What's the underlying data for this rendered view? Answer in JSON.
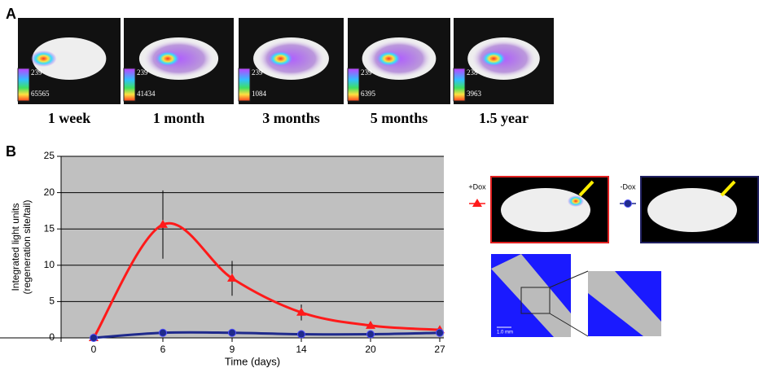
{
  "panel_labels": [
    "A",
    "B"
  ],
  "panel_a": {
    "images": [
      {
        "label": "1 week",
        "scale_min": "239",
        "scale_max": "65565"
      },
      {
        "label": "1 month",
        "scale_min": "239",
        "scale_max": "41434"
      },
      {
        "label": "3  months",
        "scale_min": "239",
        "scale_max": "1084"
      },
      {
        "label": "5 months",
        "scale_min": "239",
        "scale_max": "6395"
      },
      {
        "label": "1.5 year",
        "scale_min": "238",
        "scale_max": "3963"
      }
    ]
  },
  "scale_bar": "1.0 mm",
  "chart_data": {
    "type": "line",
    "x_label": "Time (days)",
    "y_label": [
      "Integrated light units",
      "(regeneration site/tail)"
    ],
    "categories": [
      "0",
      "6",
      "9",
      "14",
      "20",
      "27"
    ],
    "ylim": [
      0,
      25
    ],
    "yticks": [
      0,
      5,
      10,
      15,
      20,
      25
    ],
    "grid": true,
    "series": [
      {
        "name": "+Dox",
        "color": "#ff1a1a",
        "marker": "triangle",
        "values": [
          0,
          15.6,
          8.2,
          3.5,
          1.7,
          1.1
        ],
        "errors": [
          null,
          4.7,
          2.4,
          1.1,
          null,
          null
        ]
      },
      {
        "name": "-Dox",
        "color": "#1f2a8c",
        "marker": "circle",
        "values": [
          0,
          0.7,
          0.7,
          0.5,
          0.5,
          0.7
        ]
      }
    ]
  }
}
